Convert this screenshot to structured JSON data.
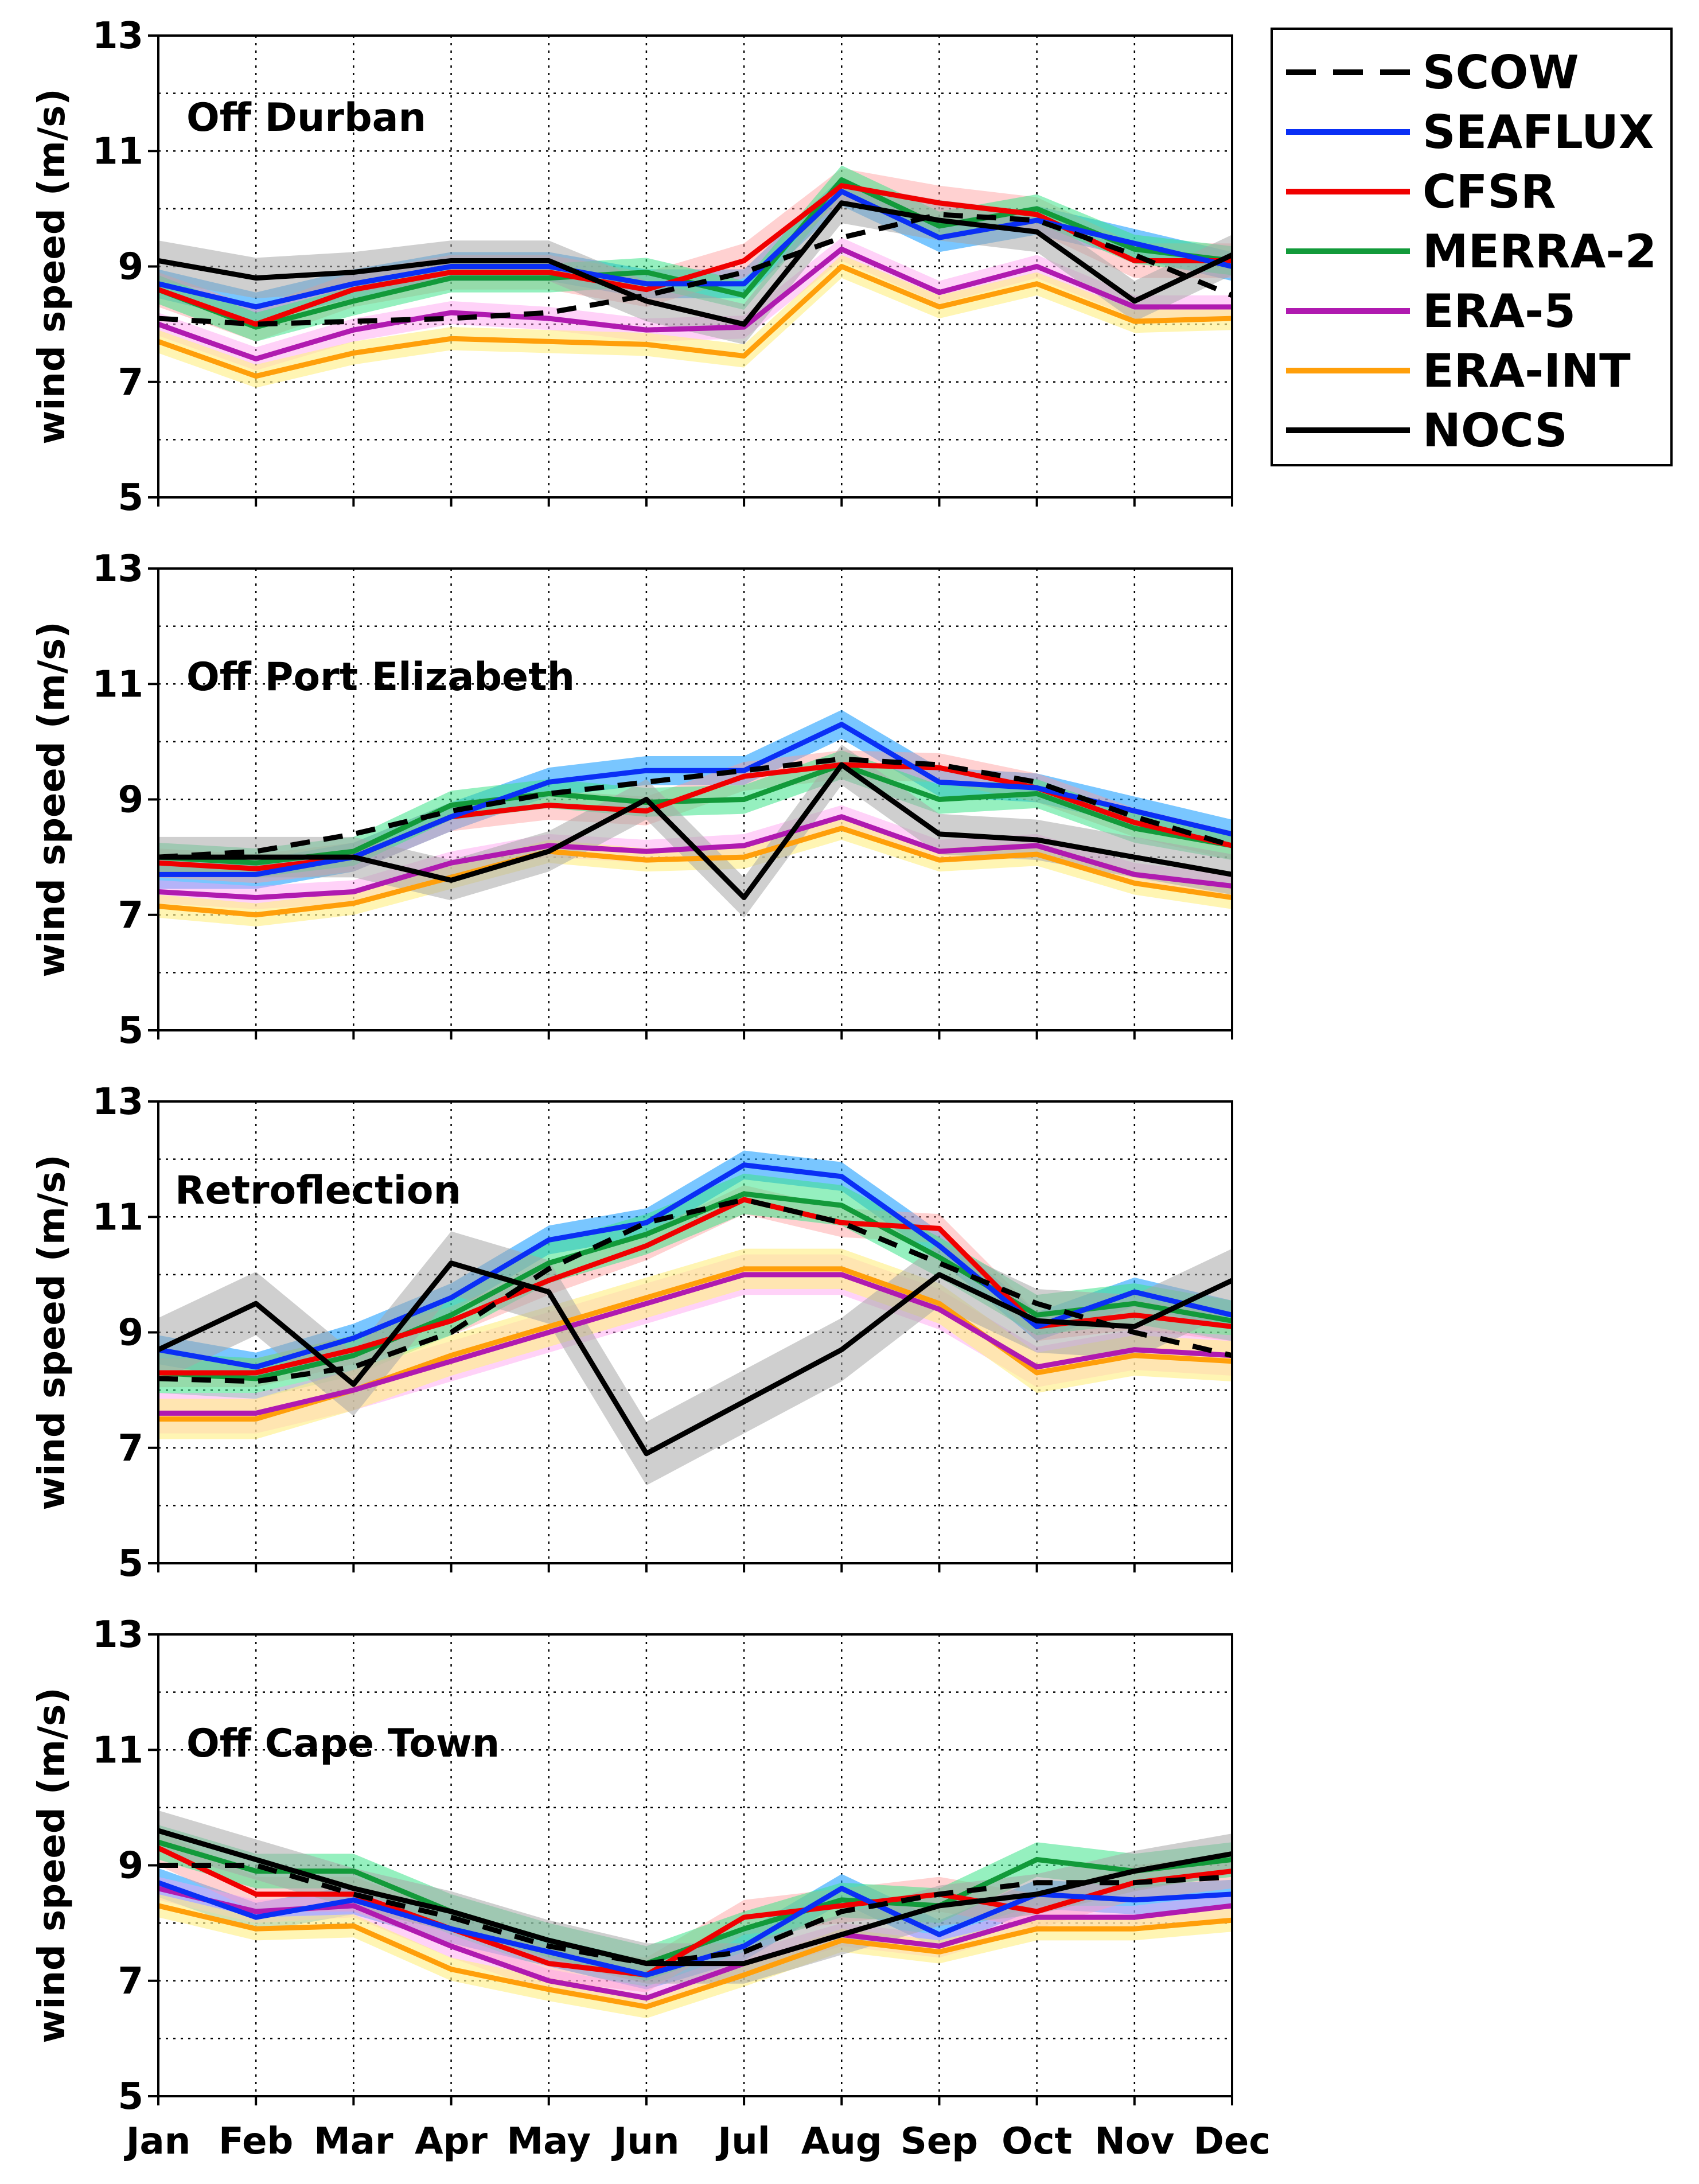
{
  "figure": {
    "months": [
      "Jan",
      "Feb",
      "Mar",
      "Apr",
      "May",
      "Jun",
      "Jul",
      "Aug",
      "Sep",
      "Oct",
      "Nov",
      "Dec"
    ],
    "ylabel": "wind speed (m/s)",
    "yticks": [
      5,
      7,
      9,
      11,
      13
    ],
    "ylim": [
      5,
      13
    ]
  },
  "legend": {
    "items": [
      {
        "label": "SCOW",
        "color": "#000000",
        "dashed": true
      },
      {
        "label": "SEAFLUX",
        "color": "#0a2ff5",
        "dashed": false
      },
      {
        "label": "CFSR",
        "color": "#f00000",
        "dashed": false
      },
      {
        "label": "MERRA-2",
        "color": "#129a3a",
        "dashed": false
      },
      {
        "label": "ERA-5",
        "color": "#b01ab0",
        "dashed": false
      },
      {
        "label": "ERA-INT",
        "color": "#ff9f0a",
        "dashed": false
      },
      {
        "label": "NOCS",
        "color": "#000000",
        "dashed": false
      }
    ]
  },
  "chart_data": [
    {
      "type": "line",
      "title": "Off Durban",
      "xlabel": "",
      "ylabel": "wind speed (m/s)",
      "ylim": [
        5,
        13
      ],
      "grid": true,
      "categories": [
        "Jan",
        "Feb",
        "Mar",
        "Apr",
        "May",
        "Jun",
        "Jul",
        "Aug",
        "Sep",
        "Oct",
        "Nov",
        "Dec"
      ],
      "series": [
        {
          "name": "SCOW",
          "values": [
            8.1,
            8.0,
            8.05,
            8.1,
            8.2,
            8.5,
            8.9,
            9.5,
            9.9,
            9.8,
            9.2,
            8.5
          ],
          "band": 0.0
        },
        {
          "name": "SEAFLUX",
          "values": [
            8.7,
            8.3,
            8.7,
            9.0,
            9.0,
            8.7,
            8.7,
            10.3,
            9.5,
            9.8,
            9.4,
            9.0
          ],
          "band": 0.25
        },
        {
          "name": "CFSR",
          "values": [
            8.6,
            8.0,
            8.6,
            8.9,
            8.9,
            8.6,
            9.1,
            10.4,
            10.1,
            9.9,
            9.1,
            9.1
          ],
          "band": 0.3
        },
        {
          "name": "MERRA-2",
          "values": [
            8.6,
            7.95,
            8.4,
            8.8,
            8.8,
            8.9,
            8.5,
            10.5,
            9.7,
            10.0,
            9.3,
            9.1
          ],
          "band": 0.25
        },
        {
          "name": "ERA-5",
          "values": [
            8.0,
            7.4,
            7.9,
            8.2,
            8.1,
            7.9,
            7.95,
            9.3,
            8.55,
            9.0,
            8.3,
            8.3
          ],
          "band": 0.2
        },
        {
          "name": "ERA-INT",
          "values": [
            7.7,
            7.1,
            7.5,
            7.75,
            7.7,
            7.65,
            7.45,
            9.0,
            8.3,
            8.7,
            8.05,
            8.1
          ],
          "band": 0.2
        },
        {
          "name": "NOCS",
          "values": [
            9.1,
            8.8,
            8.9,
            9.1,
            9.1,
            8.4,
            8.0,
            10.1,
            9.8,
            9.6,
            8.4,
            9.2
          ],
          "band": 0.35
        }
      ]
    },
    {
      "type": "line",
      "title": "Off Port Elizabeth",
      "xlabel": "",
      "ylabel": "wind speed (m/s)",
      "ylim": [
        5,
        13
      ],
      "grid": true,
      "categories": [
        "Jan",
        "Feb",
        "Mar",
        "Apr",
        "May",
        "Jun",
        "Jul",
        "Aug",
        "Sep",
        "Oct",
        "Nov",
        "Dec"
      ],
      "series": [
        {
          "name": "SCOW",
          "values": [
            8.0,
            8.1,
            8.4,
            8.8,
            9.1,
            9.3,
            9.5,
            9.7,
            9.6,
            9.3,
            8.7,
            8.2
          ],
          "band": 0.0
        },
        {
          "name": "SEAFLUX",
          "values": [
            7.7,
            7.7,
            8.0,
            8.7,
            9.3,
            9.5,
            9.5,
            10.3,
            9.3,
            9.2,
            8.8,
            8.4
          ],
          "band": 0.25
        },
        {
          "name": "CFSR",
          "values": [
            7.9,
            7.8,
            8.0,
            8.7,
            8.9,
            8.8,
            9.4,
            9.6,
            9.55,
            9.2,
            8.6,
            8.2
          ],
          "band": 0.25
        },
        {
          "name": "MERRA-2",
          "values": [
            8.0,
            7.9,
            8.1,
            8.9,
            9.1,
            8.95,
            9.0,
            9.6,
            9.0,
            9.1,
            8.5,
            8.2
          ],
          "band": 0.25
        },
        {
          "name": "ERA-5",
          "values": [
            7.4,
            7.3,
            7.4,
            7.9,
            8.2,
            8.1,
            8.2,
            8.7,
            8.1,
            8.2,
            7.7,
            7.5
          ],
          "band": 0.2
        },
        {
          "name": "ERA-INT",
          "values": [
            7.15,
            7.0,
            7.2,
            7.65,
            8.1,
            7.95,
            8.0,
            8.5,
            7.95,
            8.05,
            7.55,
            7.3
          ],
          "band": 0.2
        },
        {
          "name": "NOCS",
          "values": [
            8.0,
            8.0,
            8.0,
            7.6,
            8.1,
            9.0,
            7.3,
            9.6,
            8.4,
            8.3,
            8.0,
            7.7
          ],
          "band": 0.35
        }
      ]
    },
    {
      "type": "line",
      "title": "Retroflection",
      "xlabel": "",
      "ylabel": "wind speed (m/s)",
      "ylim": [
        5,
        13
      ],
      "grid": true,
      "categories": [
        "Jan",
        "Feb",
        "Mar",
        "Apr",
        "May",
        "Jun",
        "Jul",
        "Aug",
        "Sep",
        "Oct",
        "Nov",
        "Dec"
      ],
      "series": [
        {
          "name": "SCOW",
          "values": [
            8.2,
            8.15,
            8.4,
            9.0,
            10.1,
            10.9,
            11.3,
            10.9,
            10.2,
            9.5,
            9.0,
            8.6
          ],
          "band": 0.0
        },
        {
          "name": "SEAFLUX",
          "values": [
            8.7,
            8.4,
            8.9,
            9.6,
            10.6,
            10.9,
            11.9,
            11.7,
            10.5,
            9.1,
            9.7,
            9.3
          ],
          "band": 0.25
        },
        {
          "name": "CFSR",
          "values": [
            8.3,
            8.3,
            8.7,
            9.2,
            9.9,
            10.5,
            11.3,
            10.9,
            10.8,
            9.1,
            9.3,
            9.1
          ],
          "band": 0.25
        },
        {
          "name": "MERRA-2",
          "values": [
            8.3,
            8.2,
            8.6,
            9.3,
            10.2,
            10.7,
            11.4,
            11.2,
            10.3,
            9.3,
            9.5,
            9.2
          ],
          "band": 0.35
        },
        {
          "name": "ERA-5",
          "values": [
            7.6,
            7.6,
            8.0,
            8.5,
            9.0,
            9.5,
            10.0,
            10.0,
            9.4,
            8.4,
            8.7,
            8.6
          ],
          "band": 0.35
        },
        {
          "name": "ERA-INT",
          "values": [
            7.5,
            7.5,
            8.0,
            8.6,
            9.1,
            9.6,
            10.1,
            10.1,
            9.5,
            8.3,
            8.6,
            8.5
          ],
          "band": 0.35
        },
        {
          "name": "NOCS",
          "values": [
            8.7,
            9.5,
            8.1,
            10.2,
            9.7,
            6.9,
            7.8,
            8.7,
            10.0,
            9.2,
            9.1,
            9.9
          ],
          "band": 0.55
        }
      ]
    },
    {
      "type": "line",
      "title": "Off Cape Town",
      "xlabel": "",
      "ylabel": "wind speed (m/s)",
      "ylim": [
        5,
        13
      ],
      "grid": true,
      "categories": [
        "Jan",
        "Feb",
        "Mar",
        "Apr",
        "May",
        "Jun",
        "Jul",
        "Aug",
        "Sep",
        "Oct",
        "Nov",
        "Dec"
      ],
      "series": [
        {
          "name": "SCOW",
          "values": [
            9.0,
            9.0,
            8.5,
            8.1,
            7.6,
            7.3,
            7.5,
            8.2,
            8.5,
            8.7,
            8.7,
            8.8
          ],
          "band": 0.0
        },
        {
          "name": "SEAFLUX",
          "values": [
            8.7,
            8.1,
            8.4,
            7.9,
            7.5,
            7.1,
            7.6,
            8.6,
            7.8,
            8.5,
            8.4,
            8.5
          ],
          "band": 0.25
        },
        {
          "name": "CFSR",
          "values": [
            9.3,
            8.5,
            8.5,
            7.9,
            7.3,
            7.1,
            8.1,
            8.3,
            8.5,
            8.2,
            8.7,
            8.9
          ],
          "band": 0.3
        },
        {
          "name": "MERRA-2",
          "values": [
            9.4,
            8.9,
            8.9,
            8.2,
            7.7,
            7.3,
            7.9,
            8.4,
            8.3,
            9.1,
            8.9,
            9.1
          ],
          "band": 0.3
        },
        {
          "name": "ERA-5",
          "values": [
            8.6,
            8.2,
            8.3,
            7.6,
            7.0,
            6.7,
            7.3,
            7.8,
            7.6,
            8.1,
            8.1,
            8.3
          ],
          "band": 0.2
        },
        {
          "name": "ERA-INT",
          "values": [
            8.3,
            7.9,
            7.95,
            7.2,
            6.85,
            6.55,
            7.1,
            7.7,
            7.5,
            7.9,
            7.9,
            8.05
          ],
          "band": 0.2
        },
        {
          "name": "NOCS",
          "values": [
            9.6,
            9.1,
            8.6,
            8.2,
            7.7,
            7.3,
            7.3,
            7.8,
            8.3,
            8.5,
            8.9,
            9.2
          ],
          "band": 0.35
        }
      ]
    }
  ]
}
